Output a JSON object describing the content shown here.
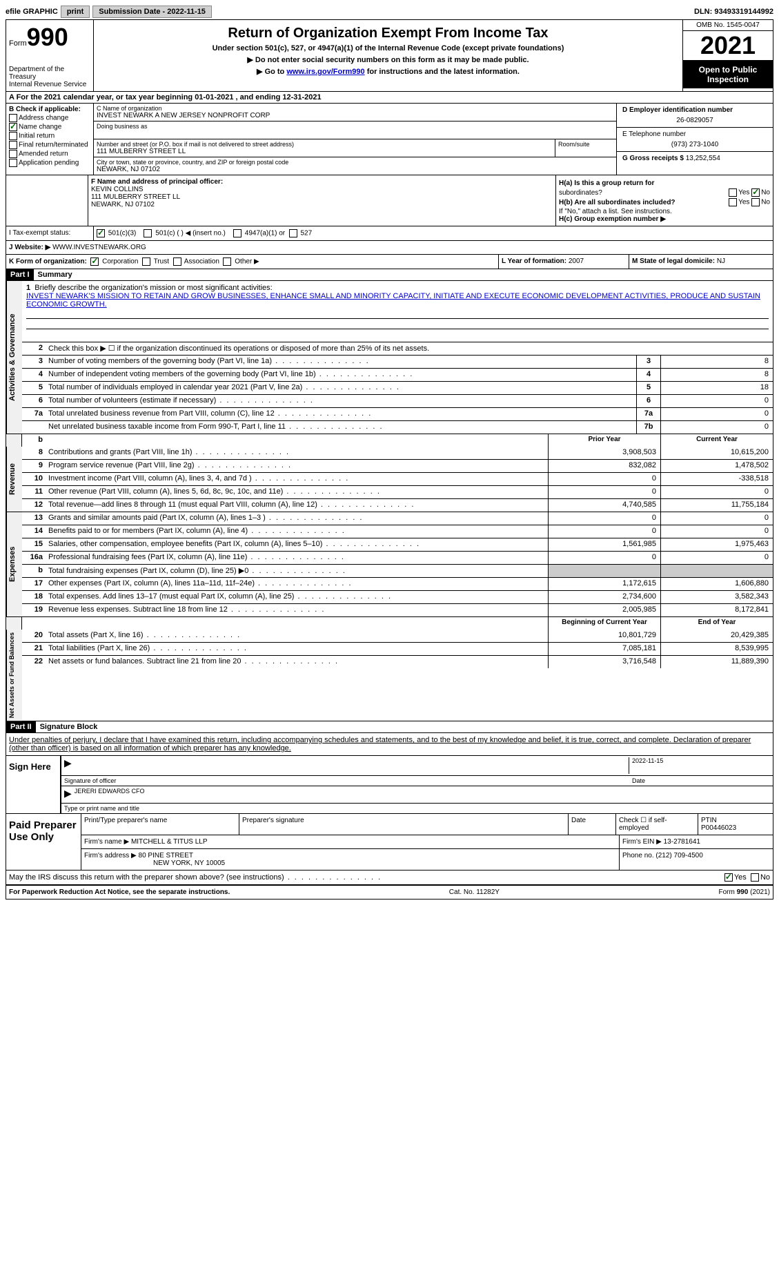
{
  "topbar": {
    "efile": "efile GRAPHIC",
    "print": "print",
    "sub_label": "Submission Date - 2022-11-15",
    "dln": "DLN: 93493319144992"
  },
  "header": {
    "form_prefix": "Form",
    "form_number": "990",
    "dept": "Department of the Treasury",
    "irs": "Internal Revenue Service",
    "title": "Return of Organization Exempt From Income Tax",
    "subtitle": "Under section 501(c), 527, or 4947(a)(1) of the Internal Revenue Code (except private foundations)",
    "warn": "▶ Do not enter social security numbers on this form as it may be made public.",
    "goto_pre": "▶ Go to ",
    "goto_link": "www.irs.gov/Form990",
    "goto_post": " for instructions and the latest information.",
    "omb": "OMB No. 1545-0047",
    "year": "2021",
    "public": "Open to Public Inspection"
  },
  "section_a": "A For the 2021 calendar year, or tax year beginning 01-01-2021    , and ending 12-31-2021",
  "section_b": {
    "title": "B Check if applicable:",
    "addr": "Address change",
    "name": "Name change",
    "initial": "Initial return",
    "final": "Final return/terminated",
    "amended": "Amended return",
    "app": "Application pending"
  },
  "section_c": {
    "name_label": "C Name of organization",
    "name": "INVEST NEWARK A NEW JERSEY NONPROFIT CORP",
    "dba_label": "Doing business as",
    "street_label": "Number and street (or P.O. box if mail is not delivered to street address)",
    "street": "111 MULBERRY STREET LL",
    "room_label": "Room/suite",
    "city_label": "City or town, state or province, country, and ZIP or foreign postal code",
    "city": "NEWARK, NJ  07102"
  },
  "section_d": {
    "ein_label": "D Employer identification number",
    "ein": "26-0829057",
    "phone_label": "E Telephone number",
    "phone": "(973) 273-1040",
    "gross_label": "G Gross receipts $",
    "gross": "13,252,554"
  },
  "section_f": {
    "label": "F  Name and address of principal officer:",
    "name": "KEVIN COLLINS",
    "addr1": "111 MULBERRY STREET LL",
    "addr2": "NEWARK, NJ  07102"
  },
  "section_h": {
    "ha": "H(a)  Is this a group return for",
    "ha2": "subordinates?",
    "hb": "H(b)  Are all subordinates included?",
    "hb_note": "If \"No,\" attach a list. See instructions.",
    "hc": "H(c)  Group exemption number ▶",
    "yes": "Yes",
    "no": "No"
  },
  "section_i": {
    "label": "I    Tax-exempt status:",
    "c3": "501(c)(3)",
    "c": "501(c) (  ) ◀ (insert no.)",
    "a1": "4947(a)(1) or",
    "527": "527"
  },
  "section_j": {
    "label": "J   Website: ▶",
    "value": "  WWW.INVESTNEWARK.ORG"
  },
  "section_k": {
    "label": "K Form of organization:",
    "corp": "Corporation",
    "trust": "Trust",
    "assoc": "Association",
    "other": "Other ▶"
  },
  "section_l": {
    "label": "L Year of formation:",
    "value": "2007"
  },
  "section_m": {
    "label": "M State of legal domicile:",
    "value": "NJ"
  },
  "part1": {
    "header": "Part I",
    "title": "Summary",
    "line1_label": "Briefly describe the organization's mission or most significant activities:",
    "mission": "INVEST NEWARK'S MISSION TO RETAIN AND GROW BUSINESSES, ENHANCE SMALL AND MINORITY CAPACITY, INITIATE AND EXECUTE ECONOMIC DEVELOPMENT ACTIVITIES, PRODUCE AND SUSTAIN ECONOMIC GROWTH.",
    "line2": "Check this box ▶ ☐ if the organization discontinued its operations or disposed of more than 25% of its net assets.",
    "lines": [
      {
        "n": "3",
        "label": "Number of voting members of the governing body (Part VI, line 1a)",
        "box": "3",
        "v": "8"
      },
      {
        "n": "4",
        "label": "Number of independent voting members of the governing body (Part VI, line 1b)",
        "box": "4",
        "v": "8"
      },
      {
        "n": "5",
        "label": "Total number of individuals employed in calendar year 2021 (Part V, line 2a)",
        "box": "5",
        "v": "18"
      },
      {
        "n": "6",
        "label": "Total number of volunteers (estimate if necessary)",
        "box": "6",
        "v": "0"
      },
      {
        "n": "7a",
        "label": "Total unrelated business revenue from Part VIII, column (C), line 12",
        "box": "7a",
        "v": "0"
      },
      {
        "n": "",
        "label": "Net unrelated business taxable income from Form 990-T, Part I, line 11",
        "box": "7b",
        "v": "0"
      }
    ],
    "col_headers": {
      "prior": "Prior Year",
      "current": "Current Year",
      "begin": "Beginning of Current Year",
      "end": "End of Year"
    },
    "revenue": [
      {
        "n": "8",
        "label": "Contributions and grants (Part VIII, line 1h)",
        "p": "3,908,503",
        "c": "10,615,200"
      },
      {
        "n": "9",
        "label": "Program service revenue (Part VIII, line 2g)",
        "p": "832,082",
        "c": "1,478,502"
      },
      {
        "n": "10",
        "label": "Investment income (Part VIII, column (A), lines 3, 4, and 7d )",
        "p": "0",
        "c": "-338,518"
      },
      {
        "n": "11",
        "label": "Other revenue (Part VIII, column (A), lines 5, 6d, 8c, 9c, 10c, and 11e)",
        "p": "0",
        "c": "0"
      },
      {
        "n": "12",
        "label": "Total revenue—add lines 8 through 11 (must equal Part VIII, column (A), line 12)",
        "p": "4,740,585",
        "c": "11,755,184"
      }
    ],
    "expenses": [
      {
        "n": "13",
        "label": "Grants and similar amounts paid (Part IX, column (A), lines 1–3 )",
        "p": "0",
        "c": "0"
      },
      {
        "n": "14",
        "label": "Benefits paid to or for members (Part IX, column (A), line 4)",
        "p": "0",
        "c": "0"
      },
      {
        "n": "15",
        "label": "Salaries, other compensation, employee benefits (Part IX, column (A), lines 5–10)",
        "p": "1,561,985",
        "c": "1,975,463"
      },
      {
        "n": "16a",
        "label": "Professional fundraising fees (Part IX, column (A), line 11e)",
        "p": "0",
        "c": "0"
      },
      {
        "n": "b",
        "label": "Total fundraising expenses (Part IX, column (D), line 25) ▶0",
        "p": "",
        "c": "",
        "grey": true
      },
      {
        "n": "17",
        "label": "Other expenses (Part IX, column (A), lines 11a–11d, 11f–24e)",
        "p": "1,172,615",
        "c": "1,606,880"
      },
      {
        "n": "18",
        "label": "Total expenses. Add lines 13–17 (must equal Part IX, column (A), line 25)",
        "p": "2,734,600",
        "c": "3,582,343"
      },
      {
        "n": "19",
        "label": "Revenue less expenses. Subtract line 18 from line 12",
        "p": "2,005,985",
        "c": "8,172,841"
      }
    ],
    "netassets": [
      {
        "n": "20",
        "label": "Total assets (Part X, line 16)",
        "p": "10,801,729",
        "c": "20,429,385"
      },
      {
        "n": "21",
        "label": "Total liabilities (Part X, line 26)",
        "p": "7,085,181",
        "c": "8,539,995"
      },
      {
        "n": "22",
        "label": "Net assets or fund balances. Subtract line 21 from line 20",
        "p": "3,716,548",
        "c": "11,889,390"
      }
    ],
    "vlabels": {
      "gov": "Activities & Governance",
      "rev": "Revenue",
      "exp": "Expenses",
      "net": "Net Assets or Fund Balances"
    }
  },
  "part2": {
    "header": "Part II",
    "title": "Signature Block",
    "intro": "Under penalties of perjury, I declare that I have examined this return, including accompanying schedules and statements, and to the best of my knowledge and belief, it is true, correct, and complete. Declaration of preparer (other than officer) is based on all information of which preparer has any knowledge.",
    "sign_here": "Sign Here",
    "sig_officer": "Signature of officer",
    "sig_date": "2022-11-15",
    "date_label": "Date",
    "name": "JERERI EDWARDS  CFO",
    "name_label": "Type or print name and title",
    "paid": "Paid Preparer Use Only",
    "prep_name_label": "Print/Type preparer's name",
    "prep_sig_label": "Preparer's signature",
    "check_label": "Check ☐ if self-employed",
    "ptin_label": "PTIN",
    "ptin": "P00446023",
    "firm_name_label": "Firm's name     ▶",
    "firm_name": "MITCHELL & TITUS LLP",
    "firm_ein_label": "Firm's EIN ▶",
    "firm_ein": "13-2781641",
    "firm_addr_label": "Firm's address ▶",
    "firm_addr1": "80 PINE STREET",
    "firm_addr2": "NEW YORK, NY  10005",
    "phone_label": "Phone no.",
    "phone": "(212) 709-4500",
    "discuss": "May the IRS discuss this return with the preparer shown above? (see instructions)",
    "yes": "Yes",
    "no": "No"
  },
  "footer": {
    "left": "For Paperwork Reduction Act Notice, see the separate instructions.",
    "center": "Cat. No. 11282Y",
    "right": "Form 990 (2021)"
  }
}
